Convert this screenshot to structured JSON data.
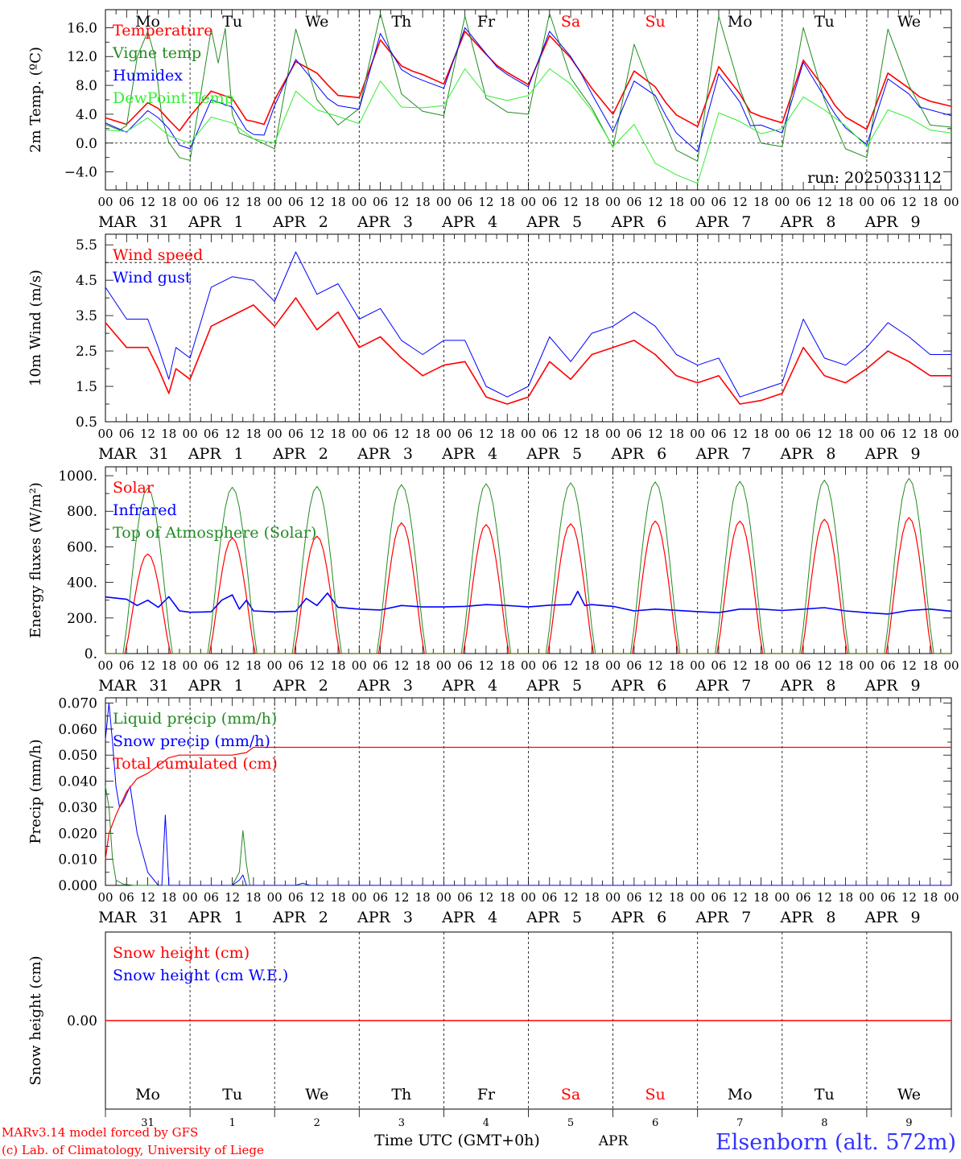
{
  "colors": {
    "red": "#ff0000",
    "green": "#228b22",
    "blue": "#0000ff",
    "light_green": "#33ee33",
    "axis": "#000000",
    "title_blue": "#3333ff"
  },
  "days": [
    {
      "abbr": "Mo",
      "month": "MAR",
      "num": "31",
      "weekend": false
    },
    {
      "abbr": "Tu",
      "month": "APR",
      "num": "1",
      "weekend": false
    },
    {
      "abbr": "We",
      "month": "APR",
      "num": "2",
      "weekend": false
    },
    {
      "abbr": "Th",
      "month": "APR",
      "num": "3",
      "weekend": false
    },
    {
      "abbr": "Fr",
      "month": "APR",
      "num": "4",
      "weekend": false
    },
    {
      "abbr": "Sa",
      "month": "APR",
      "num": "5",
      "weekend": true
    },
    {
      "abbr": "Su",
      "month": "APR",
      "num": "6",
      "weekend": true
    },
    {
      "abbr": "Mo",
      "month": "APR",
      "num": "7",
      "weekend": false
    },
    {
      "abbr": "Tu",
      "month": "APR",
      "num": "8",
      "weekend": false
    },
    {
      "abbr": "We",
      "month": "APR",
      "num": "9",
      "weekend": false
    }
  ],
  "hour_labels": [
    "00",
    "06",
    "12",
    "18"
  ],
  "final_hour_label": "00",
  "run_label": "run: 2025033112",
  "footer": {
    "model": "MARv3.14 model forced by GFS",
    "credit": "(c) Lab. of Climatology, University of Liege",
    "time_label": "Time UTC (GMT+0h)",
    "month_label": "APR",
    "station": "Elsenborn (alt. 572m)"
  },
  "chart_data": [
    {
      "id": "temp",
      "type": "line",
      "ylabel": "2m Temp. (ºC)",
      "ylim": [
        -6.5,
        18.5
      ],
      "yticks": [
        -4,
        0,
        4,
        8,
        12,
        16
      ],
      "ytick_labels": [
        "−4.0",
        "0.0",
        "4.0",
        "8.0",
        "12.0",
        "16.0"
      ],
      "ref_lines": [
        0
      ],
      "x_unit": "hours since 2025-03-31 00 UTC",
      "series": [
        {
          "name": "Temperature",
          "color": "red",
          "width": 1.6,
          "x": [
            0,
            6,
            12,
            15,
            18,
            21,
            24,
            30,
            36,
            40,
            42,
            45,
            48,
            54,
            60,
            63,
            66,
            72,
            78,
            84,
            87,
            90,
            96,
            102,
            108,
            111,
            114,
            120,
            126,
            132,
            135,
            138,
            144,
            150,
            156,
            159,
            162,
            168,
            174,
            180,
            183,
            186,
            192,
            198,
            204,
            207,
            210,
            216,
            222,
            228,
            231,
            234,
            240
          ],
          "values": [
            3.5,
            2.6,
            5.6,
            4.8,
            3.2,
            1.7,
            3.7,
            7.2,
            6.2,
            3.2,
            3.0,
            2.6,
            6.0,
            11.3,
            9.7,
            8.1,
            6.6,
            6.3,
            14.3,
            10.7,
            10.0,
            9.5,
            8.2,
            15.5,
            12.3,
            10.8,
            9.8,
            8.1,
            14.9,
            11.8,
            9.7,
            7.6,
            4.0,
            10.0,
            7.8,
            5.6,
            3.9,
            2.3,
            10.6,
            6.8,
            4.3,
            3.7,
            2.8,
            11.5,
            7.6,
            5.2,
            3.6,
            1.9,
            9.7,
            7.6,
            6.4,
            5.8,
            5.1
          ]
        },
        {
          "name": "Vigne temp",
          "color": "green",
          "width": 1.0,
          "x": [
            0,
            4,
            6,
            9,
            12,
            14,
            16,
            18,
            21,
            24,
            30,
            32,
            34,
            36,
            38,
            42,
            48,
            54,
            60,
            66,
            72,
            78,
            84,
            90,
            96,
            102,
            108,
            114,
            120,
            126,
            132,
            138,
            144,
            150,
            156,
            162,
            168,
            174,
            180,
            186,
            192,
            198,
            204,
            210,
            216,
            222,
            228,
            234,
            240
          ],
          "values": [
            2.6,
            1.8,
            2.4,
            11.9,
            15.5,
            12.0,
            3.6,
            0.1,
            -2.0,
            -2.4,
            15.8,
            11.1,
            15.9,
            4.0,
            1.4,
            0.6,
            -0.8,
            15.8,
            6.0,
            2.5,
            4.8,
            18.0,
            6.8,
            4.4,
            3.8,
            17.6,
            6.2,
            4.3,
            4.0,
            18.0,
            9.0,
            4.9,
            -0.6,
            13.7,
            6.0,
            -1.0,
            -2.5,
            17.6,
            7.5,
            0.0,
            -0.5,
            16.0,
            6.0,
            -0.8,
            -2.0,
            15.8,
            8.0,
            2.5,
            2.2
          ]
        },
        {
          "name": "Humidex",
          "color": "blue",
          "width": 1.0,
          "x": [
            0,
            6,
            12,
            15,
            18,
            21,
            24,
            30,
            36,
            40,
            42,
            45,
            48,
            54,
            60,
            63,
            66,
            72,
            78,
            84,
            87,
            90,
            96,
            102,
            108,
            111,
            114,
            120,
            126,
            132,
            135,
            138,
            144,
            150,
            156,
            159,
            162,
            168,
            174,
            180,
            183,
            186,
            192,
            198,
            204,
            207,
            210,
            216,
            222,
            228,
            231,
            234,
            240
          ],
          "values": [
            2.8,
            1.5,
            4.5,
            3.5,
            2.0,
            -0.3,
            -0.8,
            6.0,
            5.0,
            1.8,
            1.2,
            1.1,
            5.2,
            11.6,
            8.0,
            6.2,
            5.2,
            4.7,
            15.2,
            10.2,
            9.3,
            8.7,
            7.6,
            16.0,
            12.4,
            10.6,
            9.5,
            7.8,
            15.5,
            12.0,
            9.6,
            6.8,
            1.6,
            8.6,
            6.6,
            3.8,
            1.4,
            -1.2,
            9.6,
            5.7,
            2.4,
            2.5,
            1.4,
            11.2,
            6.4,
            4.0,
            2.1,
            -0.2,
            8.9,
            6.8,
            5.0,
            4.6,
            3.8
          ]
        },
        {
          "name": "DewPoint Temp",
          "color": "light_green",
          "width": 1.0,
          "x": [
            0,
            6,
            12,
            18,
            24,
            30,
            36,
            42,
            48,
            54,
            60,
            66,
            72,
            78,
            84,
            90,
            96,
            102,
            108,
            114,
            120,
            126,
            132,
            138,
            144,
            150,
            156,
            162,
            168,
            174,
            180,
            186,
            192,
            198,
            204,
            210,
            216,
            222,
            228,
            234,
            240
          ],
          "values": [
            1.8,
            1.6,
            3.5,
            1.0,
            0.0,
            3.6,
            2.8,
            0.6,
            0.0,
            7.2,
            4.6,
            3.7,
            2.7,
            8.6,
            5.0,
            4.9,
            5.2,
            10.3,
            6.6,
            5.9,
            6.6,
            10.3,
            8.2,
            4.5,
            -0.5,
            2.6,
            -2.8,
            -4.4,
            -5.6,
            4.2,
            3.0,
            1.3,
            2.0,
            6.4,
            4.6,
            2.4,
            -0.5,
            4.6,
            3.5,
            1.8,
            1.4
          ]
        }
      ]
    },
    {
      "id": "wind",
      "type": "line",
      "ylabel": "10m Wind (m/s)",
      "ylim": [
        0.5,
        5.8
      ],
      "yticks": [
        0.5,
        1.5,
        2.5,
        3.5,
        4.5,
        5.5
      ],
      "ytick_labels": [
        "0.5",
        "1.5",
        "2.5",
        "3.5",
        "4.5",
        "5.5"
      ],
      "ref_lines": [
        5.0
      ],
      "x_unit": "hours since 2025-03-31 00 UTC",
      "series": [
        {
          "name": "Wind speed",
          "color": "red",
          "width": 1.6,
          "x": [
            0,
            6,
            12,
            15,
            18,
            20,
            24,
            30,
            36,
            42,
            48,
            54,
            60,
            66,
            72,
            78,
            84,
            90,
            96,
            102,
            108,
            114,
            120,
            126,
            132,
            138,
            144,
            150,
            156,
            162,
            168,
            174,
            180,
            186,
            192,
            198,
            204,
            210,
            216,
            222,
            228,
            234,
            240
          ],
          "values": [
            3.3,
            2.6,
            2.6,
            2.0,
            1.3,
            2.0,
            1.7,
            3.2,
            3.5,
            3.8,
            3.2,
            4.0,
            3.1,
            3.6,
            2.6,
            2.9,
            2.3,
            1.8,
            2.1,
            2.2,
            1.2,
            1.0,
            1.2,
            2.2,
            1.7,
            2.4,
            2.6,
            2.8,
            2.4,
            1.8,
            1.6,
            1.8,
            1.0,
            1.1,
            1.3,
            2.6,
            1.8,
            1.6,
            2.0,
            2.5,
            2.2,
            1.8,
            1.8
          ]
        },
        {
          "name": "Wind gust",
          "color": "blue",
          "width": 1.0,
          "x": [
            0,
            6,
            12,
            15,
            18,
            20,
            24,
            30,
            36,
            42,
            48,
            54,
            60,
            66,
            72,
            78,
            84,
            90,
            96,
            102,
            108,
            114,
            120,
            126,
            132,
            138,
            144,
            150,
            156,
            162,
            168,
            174,
            180,
            186,
            192,
            198,
            204,
            210,
            216,
            222,
            228,
            234,
            240
          ],
          "values": [
            4.3,
            3.4,
            3.4,
            2.6,
            1.7,
            2.6,
            2.3,
            4.3,
            4.6,
            4.5,
            3.9,
            5.3,
            4.1,
            4.4,
            3.4,
            3.7,
            2.8,
            2.4,
            2.8,
            2.8,
            1.5,
            1.2,
            1.5,
            2.9,
            2.2,
            3.0,
            3.2,
            3.6,
            3.2,
            2.4,
            2.1,
            2.3,
            1.2,
            1.4,
            1.6,
            3.4,
            2.3,
            2.1,
            2.6,
            3.3,
            2.9,
            2.4,
            2.4
          ]
        }
      ]
    },
    {
      "id": "energy",
      "type": "line",
      "ylabel": "Energy fluxes (W/m²)",
      "ylim": [
        0,
        1050
      ],
      "yticks": [
        0,
        200,
        400,
        600,
        800,
        1000
      ],
      "ytick_labels": [
        "0.",
        "200.",
        "400.",
        "600.",
        "800.",
        "1000."
      ],
      "ref_lines": [],
      "x_unit": "hours since 2025-03-31 00 UTC",
      "series": [
        {
          "name": "Solar",
          "color": "red",
          "width": 1.2,
          "peaks": [
            560,
            650,
            660,
            735,
            725,
            730,
            745,
            745,
            755,
            765
          ],
          "sunrise": 5.5,
          "sunset": 18.5
        },
        {
          "name": "Infrared",
          "color": "blue",
          "width": 1.6,
          "x": [
            0,
            6,
            9,
            12,
            15,
            18,
            21,
            24,
            30,
            33,
            36,
            38,
            40,
            42,
            48,
            54,
            57,
            60,
            63,
            66,
            72,
            78,
            84,
            90,
            96,
            102,
            108,
            114,
            120,
            126,
            132,
            134,
            136,
            138,
            144,
            150,
            156,
            162,
            168,
            174,
            180,
            186,
            192,
            198,
            204,
            210,
            216,
            222,
            228,
            234,
            240
          ],
          "values": [
            318,
            305,
            270,
            300,
            260,
            320,
            240,
            232,
            235,
            300,
            330,
            250,
            300,
            240,
            234,
            238,
            310,
            270,
            340,
            260,
            250,
            245,
            270,
            262,
            262,
            265,
            275,
            270,
            262,
            272,
            275,
            350,
            270,
            275,
            265,
            240,
            250,
            243,
            236,
            230,
            250,
            250,
            242,
            250,
            258,
            240,
            230,
            222,
            242,
            250,
            238
          ]
        },
        {
          "name": "Top of Atmosphere (Solar)",
          "color": "green",
          "width": 1.0,
          "peaks": [
            930,
            935,
            940,
            950,
            955,
            960,
            965,
            968,
            975,
            985
          ],
          "sunrise": 5.0,
          "sunset": 19.0
        }
      ]
    },
    {
      "id": "precip",
      "type": "line",
      "ylabel": "Precip (mm/h)",
      "ylim": [
        0,
        0.072
      ],
      "yticks": [
        0,
        0.01,
        0.02,
        0.03,
        0.04,
        0.05,
        0.06,
        0.07
      ],
      "ytick_labels": [
        "0.000",
        "0.010",
        "0.020",
        "0.030",
        "0.040",
        "0.050",
        "0.060",
        "0.070"
      ],
      "ref_lines": [],
      "x_unit": "hours since 2025-03-31 00 UTC",
      "series": [
        {
          "name": "Liquid precip (mm/h)",
          "color": "green",
          "width": 1.0,
          "x": [
            0,
            1,
            2,
            3,
            5,
            8,
            12,
            18,
            24,
            36,
            38,
            39,
            40,
            41,
            42,
            60,
            66,
            240
          ],
          "values": [
            0.038,
            0.03,
            0.01,
            0.002,
            0.0005,
            0.0,
            0.0,
            0.0,
            0.0,
            0.0,
            0.005,
            0.021,
            0.008,
            0.0,
            0.0,
            0.0,
            0.0,
            0.0
          ]
        },
        {
          "name": "Snow precip (mm/h)",
          "color": "blue",
          "width": 1.0,
          "x": [
            0,
            1,
            2,
            3,
            4,
            5,
            7,
            9,
            12,
            15,
            16,
            17,
            18,
            19,
            24,
            36,
            38,
            39,
            40,
            42,
            54,
            56,
            58,
            60,
            240
          ],
          "values": [
            0.056,
            0.07,
            0.055,
            0.038,
            0.03,
            0.032,
            0.038,
            0.02,
            0.005,
            0.0,
            0.0,
            0.027,
            0.0,
            0.0,
            0.0,
            0.0,
            0.002,
            0.004,
            0.0,
            0.0,
            0.0,
            0.0008,
            0.0,
            0.0,
            0.0
          ]
        },
        {
          "name": "Total cumulated (cm)",
          "color": "red",
          "width": 1.2,
          "x": [
            0,
            1,
            3,
            6,
            9,
            12,
            15,
            18,
            21,
            24,
            36,
            40,
            42,
            48,
            240
          ],
          "values": [
            0.01,
            0.02,
            0.027,
            0.036,
            0.041,
            0.043,
            0.046,
            0.049,
            0.05,
            0.05,
            0.05,
            0.051,
            0.053,
            0.053,
            0.053
          ]
        }
      ]
    },
    {
      "id": "snow",
      "type": "line",
      "ylabel": "Snow height (cm)",
      "ylim": [
        -1,
        1
      ],
      "yticks": [
        0
      ],
      "ytick_labels": [
        "0.00"
      ],
      "ref_lines": [],
      "x_unit": "hours since 2025-03-31 00 UTC",
      "series": [
        {
          "name": "Snow height (cm)",
          "color": "red",
          "width": 1.4,
          "x": [
            0,
            240
          ],
          "values": [
            0,
            0
          ]
        },
        {
          "name": "Snow height (cm W.E.)",
          "color": "blue",
          "width": 1.0,
          "x": [],
          "values": []
        }
      ]
    }
  ]
}
